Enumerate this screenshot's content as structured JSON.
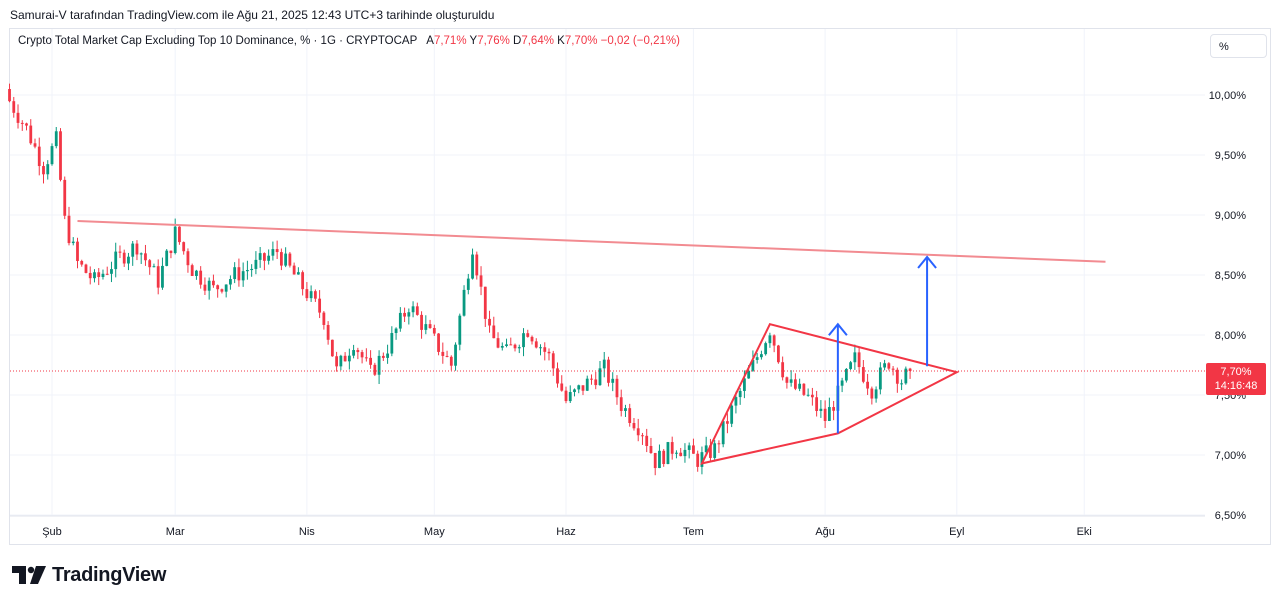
{
  "header": {
    "caption": "Samurai-V tarafından TradingView.com ile Ağu 21, 2025 12:43 UTC+3 tarihinde oluşturuldu"
  },
  "legend": {
    "symbol": "Crypto Total Market Cap Excluding Top 10 Dominance, % · 1G · CRYPTOCAP",
    "open_label": "A",
    "open": "7,71%",
    "high_label": "Y",
    "high": "7,76%",
    "low_label": "D",
    "low": "7,64%",
    "close_label": "K",
    "close": "7,70%",
    "change": "−0,02 (−0,21%)"
  },
  "unit_button": "%",
  "price_tag": {
    "value": "7,70%",
    "countdown": "14:16:48"
  },
  "logo": {
    "text": "TradingView"
  },
  "colors": {
    "up": "#089981",
    "down": "#f23645",
    "resistance": "#f28b91",
    "triangle": "#f23645",
    "target_arrow": "#2962ff",
    "grid": "#f0f3fa"
  },
  "chart_data": {
    "type": "candlestick",
    "series": [
      {
        "name": "Crypto Total Market Cap Excluding Top 10 Dominance, % · 1G · CRYPTOCAP"
      }
    ],
    "x": [
      "Şub",
      "Mar",
      "Nis",
      "May",
      "Haz",
      "Tem",
      "Ağu",
      "Eyl",
      "Eki"
    ],
    "y_ticks": [
      "10,00%",
      "9,50%",
      "9,00%",
      "8,50%",
      "8,00%",
      "7,50%",
      "7,00%",
      "6,50%"
    ],
    "ylim": [
      6.5,
      10.15
    ],
    "last_value": 7.7,
    "approx_daily_closes": [
      [
        "2025-01-21",
        9.95
      ],
      [
        "2025-01-25",
        9.72
      ],
      [
        "2025-01-29",
        9.4
      ],
      [
        "2025-02-01",
        9.62
      ],
      [
        "2025-02-03",
        8.95
      ],
      [
        "2025-02-06",
        8.6
      ],
      [
        "2025-02-10",
        8.45
      ],
      [
        "2025-02-15",
        8.62
      ],
      [
        "2025-02-20",
        8.75
      ],
      [
        "2025-02-25",
        8.45
      ],
      [
        "2025-03-01",
        8.85
      ],
      [
        "2025-03-05",
        8.55
      ],
      [
        "2025-03-10",
        8.38
      ],
      [
        "2025-03-15",
        8.5
      ],
      [
        "2025-03-20",
        8.58
      ],
      [
        "2025-03-25",
        8.7
      ],
      [
        "2025-03-30",
        8.45
      ],
      [
        "2025-04-05",
        8.15
      ],
      [
        "2025-04-08",
        7.7
      ],
      [
        "2025-04-12",
        7.95
      ],
      [
        "2025-04-16",
        7.68
      ],
      [
        "2025-04-20",
        7.9
      ],
      [
        "2025-04-25",
        8.25
      ],
      [
        "2025-04-30",
        8.0
      ],
      [
        "2025-05-05",
        7.75
      ],
      [
        "2025-05-10",
        8.75
      ],
      [
        "2025-05-14",
        8.0
      ],
      [
        "2025-05-18",
        7.85
      ],
      [
        "2025-05-23",
        8.05
      ],
      [
        "2025-05-28",
        7.82
      ],
      [
        "2025-06-01",
        7.45
      ],
      [
        "2025-06-06",
        7.6
      ],
      [
        "2025-06-10",
        7.72
      ],
      [
        "2025-06-14",
        7.42
      ],
      [
        "2025-06-19",
        7.2
      ],
      [
        "2025-06-22",
        6.95
      ],
      [
        "2025-06-27",
        7.08
      ],
      [
        "2025-07-02",
        6.96
      ],
      [
        "2025-07-06",
        7.05
      ],
      [
        "2025-07-11",
        7.45
      ],
      [
        "2025-07-16",
        7.82
      ],
      [
        "2025-07-19",
        8.05
      ],
      [
        "2025-07-23",
        7.6
      ],
      [
        "2025-07-28",
        7.48
      ],
      [
        "2025-08-01",
        7.3
      ],
      [
        "2025-08-04",
        7.5
      ],
      [
        "2025-08-08",
        7.8
      ],
      [
        "2025-08-12",
        7.55
      ],
      [
        "2025-08-16",
        7.78
      ],
      [
        "2025-08-19",
        7.62
      ],
      [
        "2025-08-21",
        7.7
      ]
    ],
    "annotations": {
      "resistance_line": {
        "from": [
          "2025-02-06",
          8.95
        ],
        "to": [
          "2025-10-06",
          8.61
        ]
      },
      "triangle": {
        "apex_high": [
          "2025-07-19",
          8.09
        ],
        "apex_low_left": [
          "2025-07-03",
          6.93
        ],
        "low_right": [
          "2025-08-04",
          7.18
        ],
        "tip": [
          "2025-09-01",
          7.69
        ]
      },
      "target_arrows": [
        {
          "at": "2025-08-04",
          "from": 7.18,
          "to": 8.09
        },
        {
          "at": "2025-08-25",
          "from": 7.74,
          "to": 8.65
        }
      ]
    }
  }
}
